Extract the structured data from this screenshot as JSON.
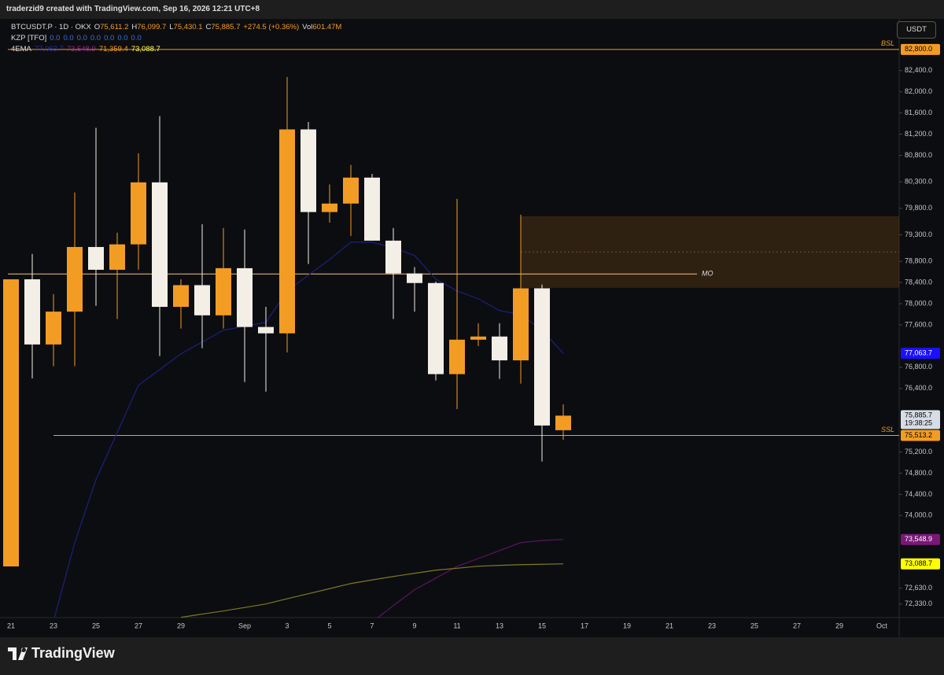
{
  "header": {
    "credit": "traderzid9 created with TradingView.com, Sep 16, 2026 12:21 UTC+8"
  },
  "legend": {
    "symbol": "BTCUSDT.P · 1D · OKX",
    "ohlc": [
      {
        "key": "O",
        "value": "75,611.2"
      },
      {
        "key": "H",
        "value": "76,099.7"
      },
      {
        "key": "L",
        "value": "75,430.1"
      },
      {
        "key": "C",
        "value": "75,885.7"
      }
    ],
    "change": "+274.5 (+0.36%)",
    "volume": {
      "key": "Vol",
      "value": "601.47M"
    },
    "kzp": {
      "name": "KZP [TFO]",
      "values": [
        "0.0",
        "0.0",
        "0.0",
        "0.0",
        "0.0",
        "0.0",
        "0.0"
      ]
    },
    "ema": {
      "name": "4EMA",
      "values": [
        "77,063.7",
        "73,548.9",
        "71,359.4",
        "73,088.7"
      ],
      "colors": [
        "#2a2fa0",
        "#8a2a8a",
        "#f39c24",
        "#ffff4d"
      ]
    }
  },
  "currency": "USDT",
  "footer": {
    "brand": "TradingView"
  },
  "chart_data": {
    "type": "candlestick",
    "categories": [
      "21",
      null,
      "23",
      null,
      "25",
      null,
      "27",
      null,
      "29",
      null,
      null,
      "Sep",
      null,
      "3",
      null,
      "5",
      null,
      "7",
      null,
      "9",
      null,
      "11",
      null,
      "13",
      null,
      "15",
      null,
      "17",
      null,
      "19",
      null,
      "21",
      null,
      "23",
      null,
      "25",
      null,
      "27",
      null,
      "29",
      null,
      "Oct"
    ],
    "open": [
      73040,
      78460,
      77230,
      77850,
      79070,
      78640,
      79120,
      80290,
      77940,
      78350,
      77780,
      78670,
      77560,
      77440,
      81290,
      79730,
      79890,
      80380,
      79190,
      78570,
      78390,
      76670,
      77320,
      77380,
      76930,
      78290,
      75611.2,
      null,
      null,
      null,
      null,
      null,
      null,
      null,
      null,
      null,
      null,
      null,
      null,
      null,
      null,
      null
    ],
    "high": [
      78460,
      78940,
      78180,
      80100,
      81320,
      79340,
      80840,
      81540,
      78460,
      79500,
      79430,
      79400,
      77940,
      82280,
      81430,
      80250,
      80620,
      80450,
      79430,
      78690,
      78420,
      79980,
      77630,
      77630,
      79680,
      78360,
      76099.7,
      null,
      null,
      null,
      null,
      null,
      null,
      null,
      null,
      null,
      null,
      null,
      null,
      null,
      null,
      null
    ],
    "low": [
      73040,
      76590,
      76820,
      76820,
      77960,
      77710,
      78640,
      77010,
      77530,
      77160,
      77530,
      76520,
      76340,
      77080,
      78750,
      79530,
      79280,
      79190,
      77710,
      77850,
      76550,
      76010,
      77200,
      76580,
      76490,
      75020,
      75430.1,
      null,
      null,
      null,
      null,
      null,
      null,
      null,
      null,
      null,
      null,
      null,
      null,
      null,
      null,
      null
    ],
    "close": [
      78460,
      77230,
      77850,
      79070,
      78640,
      79120,
      80290,
      77940,
      78350,
      77780,
      78670,
      77560,
      77440,
      81290,
      79730,
      79890,
      80380,
      79190,
      78570,
      78390,
      76670,
      77320,
      77380,
      76930,
      78290,
      75700,
      75885.7,
      null,
      null,
      null,
      null,
      null,
      null,
      null,
      null,
      null,
      null,
      null,
      null,
      null,
      null,
      null
    ],
    "up_color": "#f39c24",
    "down_color": "#f3efe6",
    "series": [
      {
        "color": "#1c2080",
        "values": [
          null,
          null,
          72004,
          73489,
          74677,
          75568,
          76459,
          76756,
          77053,
          77276,
          77499,
          77573,
          77647,
          78241,
          78538,
          78835,
          79162,
          79162,
          79058,
          78909,
          78464,
          78241,
          78093,
          77870,
          77796,
          77499,
          77063.7,
          null,
          null,
          null,
          null,
          null,
          null,
          null,
          null,
          null,
          null,
          null,
          null,
          null,
          null,
          null
        ]
      },
      {
        "color": "#5e1463",
        "values": [
          null,
          null,
          null,
          null,
          null,
          null,
          null,
          null,
          null,
          null,
          null,
          null,
          null,
          null,
          null,
          null,
          null,
          71990,
          72300,
          72600,
          72820,
          73040,
          73190,
          73340,
          73490,
          73530,
          73548.9,
          null,
          null,
          null,
          null,
          null,
          null,
          null,
          null,
          null,
          null,
          null,
          null,
          null,
          null,
          null
        ]
      },
      {
        "color": "#7d7a25",
        "values": [
          null,
          null,
          null,
          null,
          null,
          null,
          null,
          null,
          72078,
          72140,
          72200,
          72265,
          72331,
          72430,
          72524,
          72620,
          72717,
          72785,
          72850,
          72910,
          72969,
          73005,
          73044,
          73060,
          73073,
          73080,
          73088.7,
          null,
          null,
          null,
          null,
          null,
          null,
          null,
          null,
          null,
          null,
          null,
          null,
          null,
          null,
          null
        ]
      }
    ],
    "ylim": [
      72000,
      83020
    ],
    "yticks": [
      {
        "value": 82400,
        "label": "82,400.0"
      },
      {
        "value": 82000,
        "label": "82,000.0"
      },
      {
        "value": 81600,
        "label": "81,600.0"
      },
      {
        "value": 81200,
        "label": "81,200.0"
      },
      {
        "value": 80800,
        "label": "80,800.0"
      },
      {
        "value": 80300,
        "label": "80,300.0"
      },
      {
        "value": 79800,
        "label": "79,800.0"
      },
      {
        "value": 79300,
        "label": "79,300.0"
      },
      {
        "value": 78800,
        "label": "78,800.0"
      },
      {
        "value": 78400,
        "label": "78,400.0"
      },
      {
        "value": 78000,
        "label": "78,000.0"
      },
      {
        "value": 77600,
        "label": "77,600.0"
      },
      {
        "value": 76800,
        "label": "76,800.0"
      },
      {
        "value": 76400,
        "label": "76,400.0"
      },
      {
        "value": 75200,
        "label": "75,200.0"
      },
      {
        "value": 74800,
        "label": "74,800.0"
      },
      {
        "value": 74400,
        "label": "74,400.0"
      },
      {
        "value": 74000,
        "label": "74,000.0"
      },
      {
        "value": 72630,
        "label": "72,630.0"
      },
      {
        "value": 72330,
        "label": "72,330.0"
      }
    ],
    "levels": [
      {
        "name": "BSL",
        "value": 82800,
        "label": "82,800.0",
        "start": 0,
        "color": "#f39c24"
      },
      {
        "name": "SSL",
        "value": 75513.2,
        "label": "75,513.2",
        "start": 2,
        "color": "#f39c24"
      },
      {
        "name": "MO",
        "value": 78560,
        "start": 0,
        "color": "#f5c27a"
      }
    ],
    "zone": {
      "top": 79650,
      "bottom": 78300,
      "start": 24
    },
    "price_labels": [
      {
        "value": 77063.7,
        "label": "77,063.7",
        "bg": "#1a10ff",
        "fg": "#ffffff"
      },
      {
        "value": 75885.7,
        "label": "75,885.7",
        "sub": "19:38:25",
        "bg": "#d6dde6",
        "fg": "#000000"
      },
      {
        "value": 73548.9,
        "label": "73,548.9",
        "bg": "#7a1779",
        "fg": "#ffffff"
      },
      {
        "value": 73088.7,
        "label": "73,088.7",
        "bg": "#ffff00",
        "fg": "#000000"
      }
    ]
  }
}
